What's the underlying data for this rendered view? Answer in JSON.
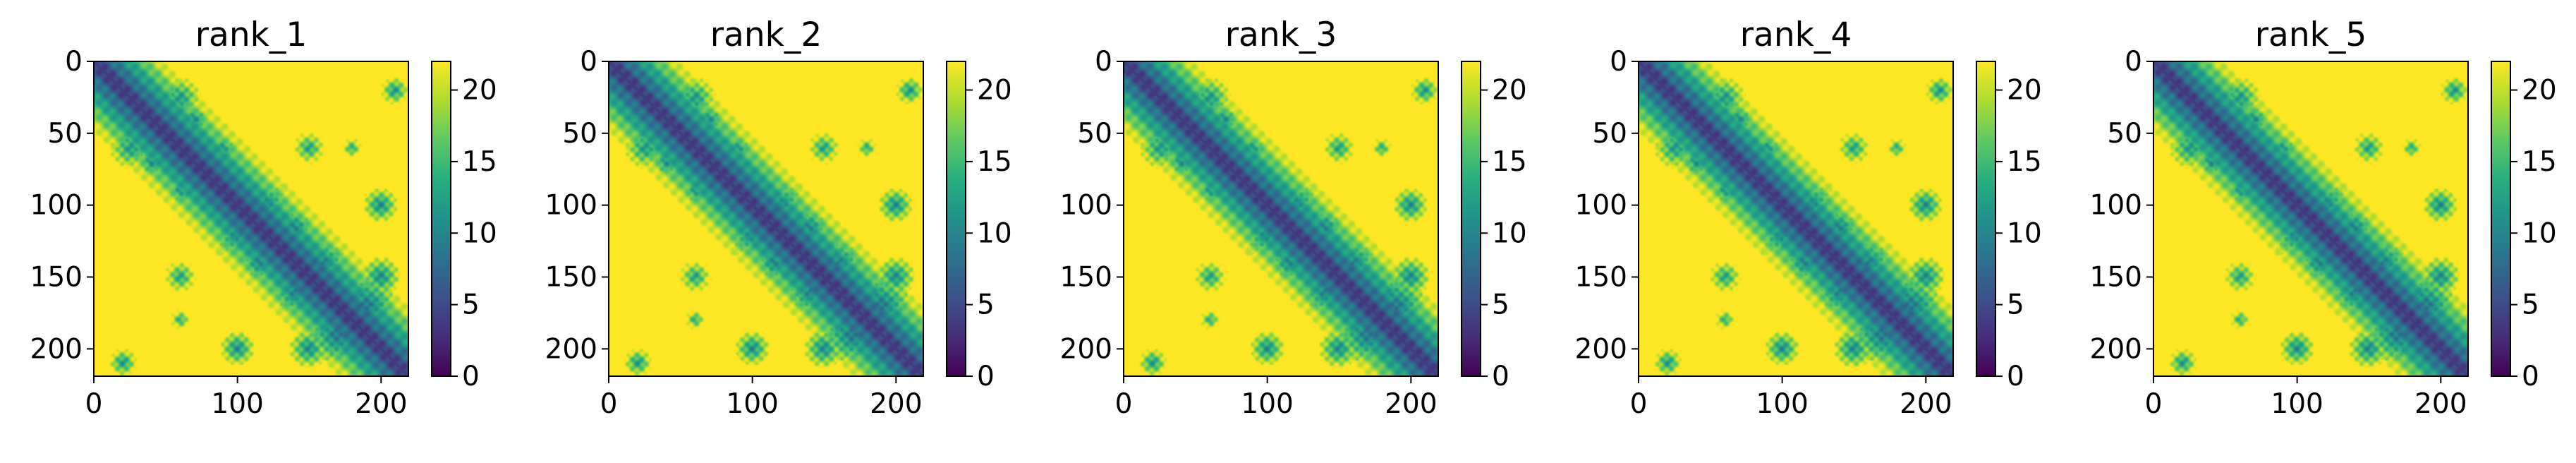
{
  "chart_data": [
    {
      "type": "heatmap",
      "title": "rank_1",
      "xlim": [
        0,
        219
      ],
      "ylim": [
        219,
        0
      ],
      "xticks": [
        0,
        100,
        200
      ],
      "yticks": [
        0,
        50,
        100,
        150,
        200
      ],
      "colorbar": {
        "cmap": "viridis",
        "range": [
          0,
          22
        ],
        "ticks": [
          0,
          5,
          10,
          15,
          20
        ]
      }
    },
    {
      "type": "heatmap",
      "title": "rank_2",
      "xlim": [
        0,
        219
      ],
      "ylim": [
        219,
        0
      ],
      "xticks": [
        0,
        100,
        200
      ],
      "yticks": [
        0,
        50,
        100,
        150,
        200
      ],
      "colorbar": {
        "cmap": "viridis",
        "range": [
          0,
          22
        ],
        "ticks": [
          0,
          5,
          10,
          15,
          20
        ]
      }
    },
    {
      "type": "heatmap",
      "title": "rank_3",
      "xlim": [
        0,
        219
      ],
      "ylim": [
        219,
        0
      ],
      "xticks": [
        0,
        100,
        200
      ],
      "yticks": [
        0,
        50,
        100,
        150,
        200
      ],
      "colorbar": {
        "cmap": "viridis",
        "range": [
          0,
          22
        ],
        "ticks": [
          0,
          5,
          10,
          15,
          20
        ]
      }
    },
    {
      "type": "heatmap",
      "title": "rank_4",
      "xlim": [
        0,
        219
      ],
      "ylim": [
        219,
        0
      ],
      "xticks": [
        0,
        100,
        200
      ],
      "yticks": [
        0,
        50,
        100,
        150,
        200
      ],
      "colorbar": {
        "cmap": "viridis",
        "range": [
          0,
          22
        ],
        "ticks": [
          0,
          5,
          10,
          15,
          20
        ]
      }
    },
    {
      "type": "heatmap",
      "title": "rank_5",
      "xlim": [
        0,
        219
      ],
      "ylim": [
        219,
        0
      ],
      "xticks": [
        0,
        100,
        200
      ],
      "yticks": [
        0,
        50,
        100,
        150,
        200
      ],
      "colorbar": {
        "cmap": "viridis",
        "range": [
          0,
          22
        ],
        "ticks": [
          0,
          5,
          10,
          15,
          20
        ]
      }
    }
  ]
}
